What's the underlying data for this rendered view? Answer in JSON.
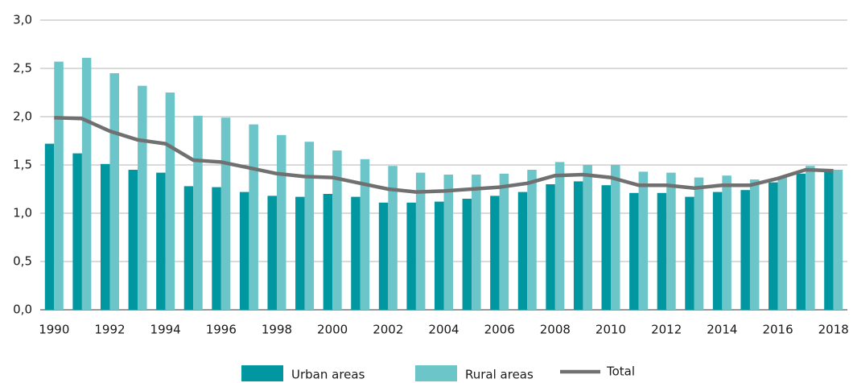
{
  "chart_data": {
    "type": "bar_line",
    "categories": [
      "1990",
      null,
      "1992",
      null,
      "1994",
      null,
      "1996",
      null,
      "1998",
      null,
      "2000",
      null,
      "2002",
      null,
      "2004",
      null,
      "2006",
      null,
      "2008",
      null,
      "2010",
      null,
      "2012",
      null,
      "2014",
      null,
      "2016",
      null,
      "2018"
    ],
    "series": [
      {
        "name": "Urban areas",
        "color": "#0097a0",
        "kind": "bar",
        "values": [
          1.72,
          1.62,
          1.51,
          1.45,
          1.42,
          1.28,
          1.27,
          1.22,
          1.18,
          1.17,
          1.2,
          1.17,
          1.11,
          1.11,
          1.12,
          1.15,
          1.18,
          1.22,
          1.3,
          1.33,
          1.29,
          1.21,
          1.21,
          1.17,
          1.22,
          1.24,
          1.32,
          1.41,
          1.43
        ]
      },
      {
        "name": "Rural areas",
        "color": "#6cc5c8",
        "kind": "bar",
        "values": [
          2.57,
          2.61,
          2.45,
          2.32,
          2.25,
          2.01,
          1.99,
          1.92,
          1.81,
          1.74,
          1.65,
          1.56,
          1.49,
          1.42,
          1.4,
          1.4,
          1.41,
          1.45,
          1.53,
          1.5,
          1.5,
          1.43,
          1.42,
          1.37,
          1.39,
          1.35,
          1.37,
          1.49,
          1.45
        ]
      },
      {
        "name": "Total",
        "color": "#707070",
        "kind": "line",
        "values": [
          1.99,
          1.98,
          1.85,
          1.76,
          1.72,
          1.55,
          1.53,
          1.47,
          1.41,
          1.38,
          1.37,
          1.31,
          1.25,
          1.22,
          1.23,
          1.25,
          1.27,
          1.31,
          1.39,
          1.4,
          1.37,
          1.29,
          1.29,
          1.26,
          1.29,
          1.29,
          1.36,
          1.45,
          1.44
        ]
      }
    ],
    "ylim": [
      0,
      3
    ],
    "yticks": [
      {
        "value": 0,
        "label": "0,0"
      },
      {
        "value": 0.5,
        "label": "0,5"
      },
      {
        "value": 1,
        "label": "1,0"
      },
      {
        "value": 1.5,
        "label": "1,5"
      },
      {
        "value": 2,
        "label": "2,0"
      },
      {
        "value": 2.5,
        "label": "2,5"
      },
      {
        "value": 3,
        "label": "3,0"
      }
    ],
    "grid": true,
    "legend": "bottom"
  }
}
